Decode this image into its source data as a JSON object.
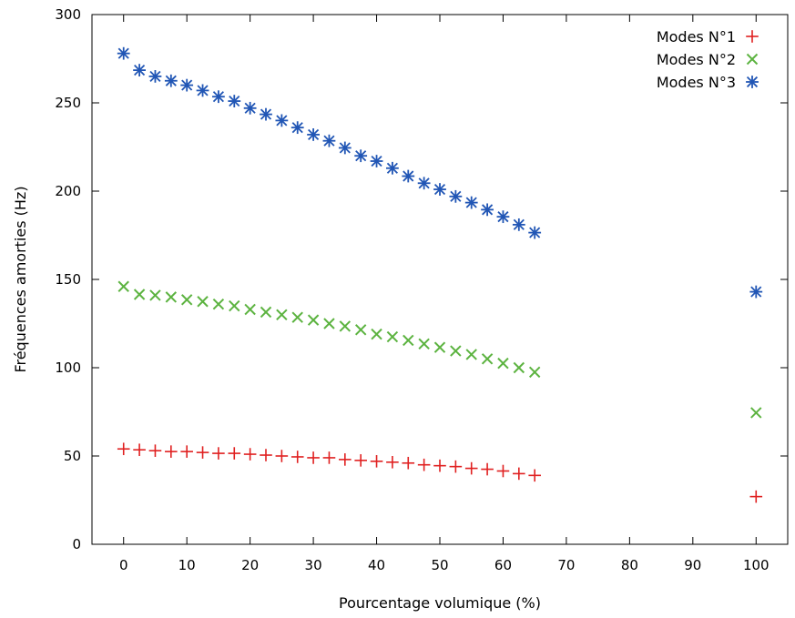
{
  "chart_data": {
    "type": "scatter",
    "title": "",
    "xlabel": "Pourcentage volumique (%)",
    "ylabel": "Fréquences amorties (Hz)",
    "xlim": [
      -5,
      105
    ],
    "ylim": [
      0,
      300
    ],
    "xticks": [
      0,
      10,
      20,
      30,
      40,
      50,
      60,
      70,
      80,
      90,
      100
    ],
    "yticks": [
      0,
      50,
      100,
      150,
      200,
      250,
      300
    ],
    "grid": false,
    "legend_position": "top-right",
    "series": [
      {
        "name": "Modes N°1",
        "marker": "plus",
        "color": "#e02020",
        "x": [
          0,
          2.5,
          5,
          7.5,
          10,
          12.5,
          15,
          17.5,
          20,
          22.5,
          25,
          27.5,
          30,
          32.5,
          35,
          37.5,
          40,
          42.5,
          45,
          47.5,
          50,
          52.5,
          55,
          57.5,
          60,
          62.5,
          65,
          100
        ],
        "y": [
          54,
          53.5,
          53,
          52.5,
          52.5,
          52,
          51.5,
          51.5,
          51,
          50.5,
          50,
          49.5,
          49,
          49,
          48,
          47.5,
          47,
          46.5,
          46,
          45,
          44.5,
          44,
          43,
          42.5,
          41.5,
          40,
          39,
          27
        ]
      },
      {
        "name": "Modes N°2",
        "marker": "cross",
        "color": "#5cb340",
        "x": [
          0,
          2.5,
          5,
          7.5,
          10,
          12.5,
          15,
          17.5,
          20,
          22.5,
          25,
          27.5,
          30,
          32.5,
          35,
          37.5,
          40,
          42.5,
          45,
          47.5,
          50,
          52.5,
          55,
          57.5,
          60,
          62.5,
          65,
          100
        ],
        "y": [
          146,
          141.5,
          141,
          140,
          138.5,
          137.5,
          136,
          135,
          133,
          131.5,
          130,
          128.5,
          127,
          125,
          123.5,
          121.5,
          119,
          117.5,
          115.5,
          113.5,
          111.5,
          109.5,
          107.5,
          105,
          102.5,
          100,
          97.5,
          74.5
        ]
      },
      {
        "name": "Modes N°3",
        "marker": "star",
        "color": "#2156b5",
        "x": [
          0,
          2.5,
          5,
          7.5,
          10,
          12.5,
          15,
          17.5,
          20,
          22.5,
          25,
          27.5,
          30,
          32.5,
          35,
          37.5,
          40,
          42.5,
          45,
          47.5,
          50,
          52.5,
          55,
          57.5,
          60,
          62.5,
          65,
          100
        ],
        "y": [
          278,
          268.5,
          265,
          262.5,
          260,
          257,
          253.5,
          251,
          247,
          243.5,
          240,
          236,
          232,
          228.5,
          224.5,
          220,
          217,
          213,
          208.5,
          204.5,
          201,
          197,
          193.5,
          189.5,
          185.5,
          181,
          176.5,
          143
        ]
      }
    ]
  }
}
